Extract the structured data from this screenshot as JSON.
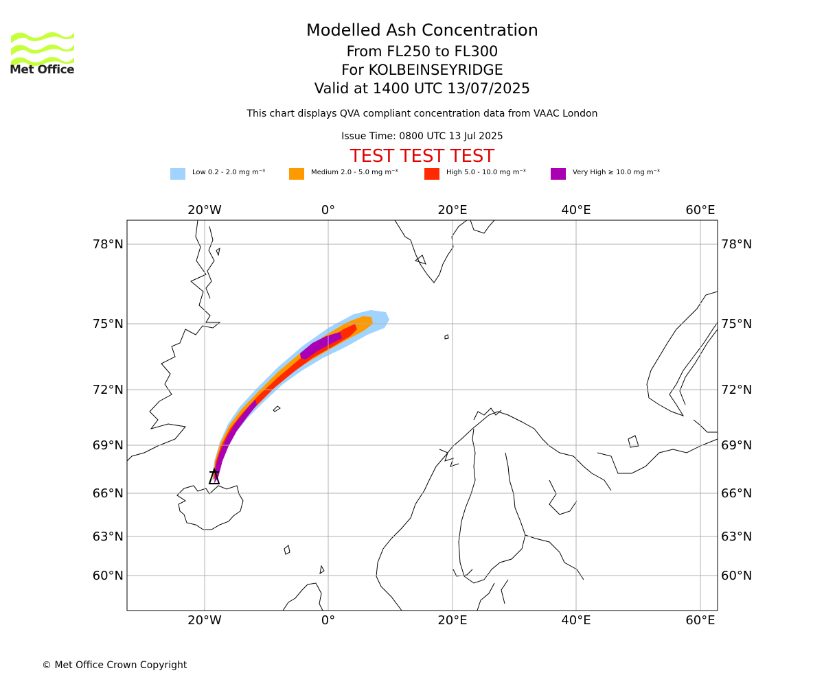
{
  "logo": {
    "text": "Met Office",
    "color": "#c6ff3b"
  },
  "header": {
    "title": "Modelled Ash Concentration",
    "levels": "From FL250 to FL300",
    "volcano": "For KOLBEINSEYRIDGE",
    "valid": "Valid at 1400 UTC 13/07/2025",
    "description": "This chart displays QVA compliant concentration data from VAAC London",
    "issue_time": "Issue Time: 0800 UTC 13 Jul 2025",
    "test_banner": "TEST TEST TEST"
  },
  "legend": [
    {
      "label": "Low 0.2 - 2.0 mg m⁻³",
      "color": "#a0d4ff"
    },
    {
      "label": "Medium 2.0 - 5.0 mg m⁻³",
      "color": "#ff9900"
    },
    {
      "label": "High 5.0 - 10.0 mg m⁻³",
      "color": "#ff2a00"
    },
    {
      "label": "Very High ≥ 10.0 mg m⁻³",
      "color": "#aa00b4"
    }
  ],
  "map": {
    "lon_labels": [
      "20°W",
      "0°",
      "20°E",
      "40°E",
      "60°E"
    ],
    "lat_labels": [
      "78°N",
      "75°N",
      "72°N",
      "69°N",
      "66°N",
      "63°N",
      "60°N"
    ],
    "volcano_marker": "triangle",
    "grid": true
  },
  "footer": {
    "copyright": "© Met Office Crown Copyright"
  }
}
